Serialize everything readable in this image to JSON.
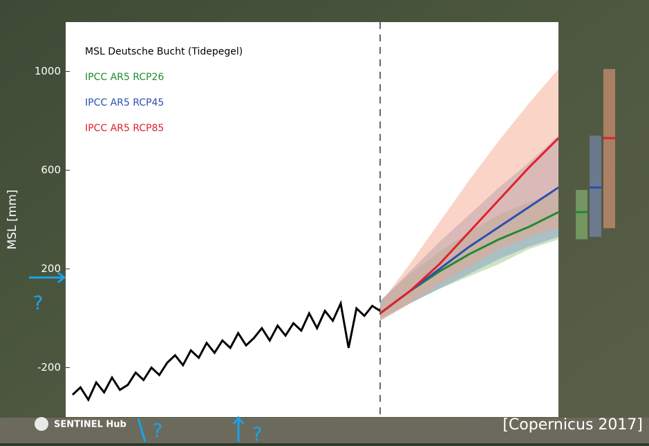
{
  "chart_data": {
    "type": "line",
    "y_label": "MSL [mm]",
    "ylim": [
      -400,
      1200
    ],
    "yticks": [
      -200,
      200,
      600,
      1000
    ],
    "observed": {
      "name": "MSL Deutsche Bucht (Tidepegel)",
      "color": "#000000",
      "values": [
        -310,
        -280,
        -330,
        -260,
        -300,
        -240,
        -290,
        -270,
        -220,
        -250,
        -200,
        -230,
        -180,
        -150,
        -190,
        -130,
        -160,
        -100,
        -140,
        -90,
        -120,
        -60,
        -110,
        -80,
        -40,
        -90,
        -30,
        -70,
        -20,
        -50,
        20,
        -40,
        30,
        -10,
        60,
        -120,
        40,
        10,
        50,
        30
      ]
    },
    "series": [
      {
        "name": "IPCC AR5 RCP26",
        "color": "#1e8c2e",
        "band_color": "#8fc47a",
        "values": [
          20,
          110,
          190,
          260,
          320,
          370,
          430
        ],
        "lower": [
          0,
          60,
          120,
          170,
          220,
          280,
          320
        ],
        "upper": [
          70,
          180,
          270,
          350,
          420,
          470,
          520
        ]
      },
      {
        "name": "IPCC AR5 RCP45",
        "color": "#2b4fb0",
        "band_color": "#7f94c8",
        "values": [
          20,
          110,
          200,
          290,
          370,
          450,
          530
        ],
        "lower": [
          -10,
          60,
          120,
          180,
          240,
          290,
          330
        ],
        "upper": [
          70,
          190,
          310,
          420,
          530,
          630,
          740
        ]
      },
      {
        "name": "IPCC AR5 RCP85",
        "color": "#e0202a",
        "band_color": "#f4a080",
        "values": [
          20,
          110,
          220,
          350,
          480,
          610,
          730
        ],
        "lower": [
          -10,
          60,
          140,
          210,
          280,
          330,
          365
        ],
        "upper": [
          60,
          220,
          390,
          560,
          720,
          870,
          1010
        ]
      }
    ],
    "source": "[Copernicus 2017]",
    "logo": "SENTINEL Hub",
    "annotations": [
      "?",
      "?",
      "?"
    ]
  }
}
